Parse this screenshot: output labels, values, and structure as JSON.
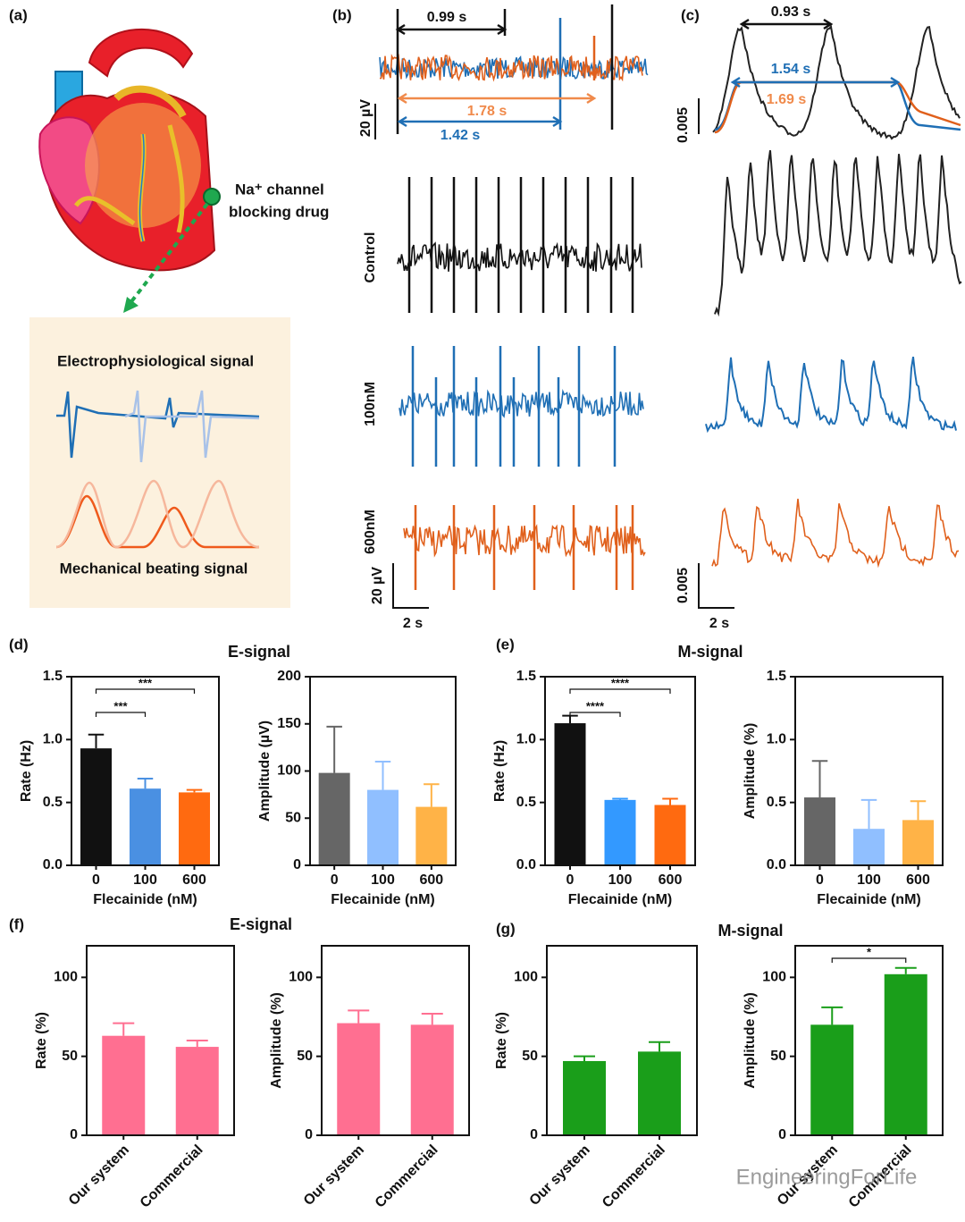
{
  "panel_labels": [
    "(a)",
    "(b)",
    "(c)",
    "(d)",
    "(e)",
    "(f)",
    "(g)"
  ],
  "panel_a": {
    "drug": [
      "Na⁺ channel",
      "blocking drug"
    ],
    "signals": [
      "Electrophysiological signal",
      "Mechanical beating signal"
    ]
  },
  "panel_b": {
    "intervals": [
      "0.99 s",
      "1.78 s",
      "1.42 s"
    ],
    "scale_top": "20 µV",
    "rows": [
      "Control",
      "100nM",
      "600nM"
    ],
    "scale_bottom": [
      "20 µV",
      "2 s"
    ]
  },
  "panel_c": {
    "intervals": [
      "0.93 s",
      "1.54 s",
      "1.69 s"
    ],
    "scale_top": "0.005",
    "scale_bottom": [
      "0.005",
      "2 s"
    ]
  },
  "group_titles": [
    "E-signal",
    "M-signal",
    "E-signal",
    "M-signal"
  ],
  "chart_data": [
    {
      "type": "bar",
      "ylabel": "Rate (Hz)",
      "xlabel": "Flecainide (nM)",
      "categories": [
        "0",
        "100",
        "600"
      ],
      "values": [
        0.93,
        0.61,
        0.58
      ],
      "errors": [
        0.11,
        0.08,
        0.02
      ],
      "colors": [
        "#111111",
        "#4a90e2",
        "#ff6a10"
      ],
      "ylim": [
        0,
        1.5
      ],
      "yticks": [
        {
          "value": 0,
          "label": "0.0"
        },
        0.5,
        {
          "value": 1,
          "label": "1.0"
        },
        1.5
      ],
      "comparisons": [
        {
          "label": "***",
          "between": [
            "0",
            "100"
          ]
        },
        {
          "label": "***",
          "between": [
            "0",
            "600"
          ]
        }
      ]
    },
    {
      "type": "bar",
      "ylabel": "Amplitude (µV)",
      "xlabel": "Flecainide (nM)",
      "categories": [
        "0",
        "100",
        "600"
      ],
      "values": [
        98,
        80,
        62
      ],
      "errors": [
        49,
        30,
        24
      ],
      "colors": [
        "#666666",
        "#90bfff",
        "#ffb347"
      ],
      "ylim": [
        0,
        200
      ],
      "yticks": [
        0,
        50,
        100,
        150,
        200
      ]
    },
    {
      "type": "bar",
      "ylabel": "Rate (Hz)",
      "xlabel": "Flecainide (nM)",
      "categories": [
        "0",
        "100",
        "600"
      ],
      "values": [
        1.13,
        0.52,
        0.48
      ],
      "errors": [
        0.06,
        0.01,
        0.05
      ],
      "colors": [
        "#111111",
        "#3399ff",
        "#ff6a10"
      ],
      "ylim": [
        0,
        1.5
      ],
      "yticks": [
        {
          "value": 0,
          "label": "0.0"
        },
        0.5,
        {
          "value": 1,
          "label": "1.0"
        },
        1.5
      ],
      "comparisons": [
        {
          "label": "****",
          "between": [
            "0",
            "100"
          ]
        },
        {
          "label": "****",
          "between": [
            "0",
            "600"
          ]
        }
      ]
    },
    {
      "type": "bar",
      "ylabel": "Amplitude (%)",
      "xlabel": "Flecainide (nM)",
      "categories": [
        "0",
        "100",
        "600"
      ],
      "values": [
        0.54,
        0.29,
        0.36
      ],
      "errors": [
        0.29,
        0.23,
        0.15
      ],
      "colors": [
        "#666666",
        "#90bfff",
        "#ffb347"
      ],
      "ylim": [
        0,
        1.5
      ],
      "yticks": [
        {
          "value": 0,
          "label": "0.0"
        },
        0.5,
        {
          "value": 1,
          "label": "1.0"
        },
        1.5
      ]
    },
    {
      "type": "bar",
      "ylabel": "Rate (%)",
      "categories": [
        "Our system",
        "Commercial"
      ],
      "values": [
        63,
        56
      ],
      "errors": [
        8,
        4
      ],
      "color": "#ff6f91",
      "ylim": [
        0,
        120
      ],
      "yticks": [
        0,
        50,
        100
      ]
    },
    {
      "type": "bar",
      "ylabel": "Amplitude (%)",
      "categories": [
        "Our system",
        "Commercial"
      ],
      "values": [
        71,
        70
      ],
      "errors": [
        8,
        7
      ],
      "color": "#ff6f91",
      "ylim": [
        0,
        120
      ],
      "yticks": [
        0,
        50,
        100
      ]
    },
    {
      "type": "bar",
      "ylabel": "Rate (%)",
      "categories": [
        "Our system",
        "Commercial"
      ],
      "values": [
        47,
        53
      ],
      "errors": [
        3,
        6
      ],
      "color": "#1a9e1a",
      "ylim": [
        0,
        120
      ],
      "yticks": [
        0,
        50,
        100
      ]
    },
    {
      "type": "bar",
      "ylabel": "Amplitude (%)",
      "categories": [
        "Our system",
        "Commercial"
      ],
      "values": [
        70,
        102
      ],
      "errors": [
        11,
        4
      ],
      "color": "#1a9e1a",
      "ylim": [
        0,
        120
      ],
      "yticks": [
        0,
        50,
        100
      ],
      "comparisons": [
        {
          "label": "*",
          "between": [
            "Our system",
            "Commercial"
          ]
        }
      ]
    }
  ],
  "watermark": "EngineeringForLife"
}
